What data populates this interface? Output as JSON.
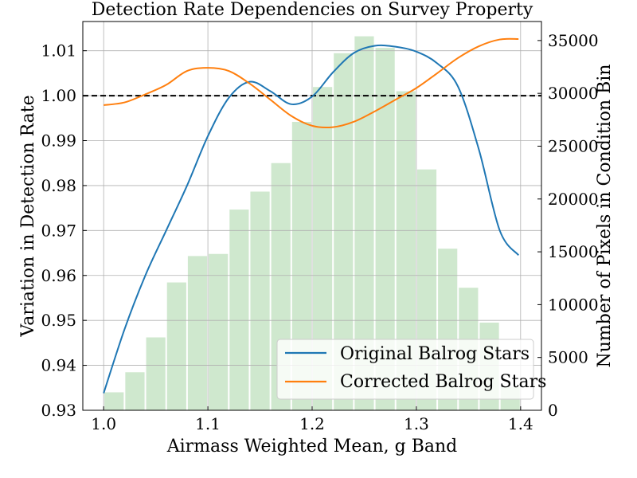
{
  "chart_data": {
    "type": "bar+line",
    "title": "Detection Rate Dependencies on Survey Property",
    "xlabel": "Airmass Weighted Mean, g Band",
    "ylabel": "Variation in Detection Rate",
    "ylabel_right": "Number of Pixels in Condition Bin",
    "xlim": [
      0.98,
      1.42
    ],
    "ylim": [
      0.93,
      1.0165
    ],
    "ylim_right": [
      0,
      36800
    ],
    "x_ticks": [
      "1.0",
      "1.1",
      "1.2",
      "1.3",
      "1.4"
    ],
    "x_tick_values": [
      1.0,
      1.1,
      1.2,
      1.3,
      1.4
    ],
    "y_ticks": [
      "0.93",
      "0.94",
      "0.95",
      "0.96",
      "0.97",
      "0.98",
      "0.99",
      "1.00",
      "1.01"
    ],
    "y_tick_values": [
      0.93,
      0.94,
      0.95,
      0.96,
      0.97,
      0.98,
      0.99,
      1.0,
      1.01
    ],
    "y_right_ticks": [
      "0",
      "5000",
      "10000",
      "15000",
      "20000",
      "25000",
      "30000",
      "35000"
    ],
    "y_right_tick_values": [
      0,
      5000,
      10000,
      15000,
      20000,
      25000,
      30000,
      35000
    ],
    "reference_line": {
      "y": 1.0,
      "style": "dashed",
      "color": "#000000"
    },
    "histogram": {
      "color": "#a8d5a6",
      "bin_edges": [
        1.0,
        1.02,
        1.04,
        1.06,
        1.08,
        1.1,
        1.12,
        1.14,
        1.16,
        1.18,
        1.2,
        1.22,
        1.24,
        1.26,
        1.28,
        1.3,
        1.32,
        1.34,
        1.36,
        1.38,
        1.4
      ],
      "counts": [
        1700,
        3600,
        6900,
        12100,
        14600,
        14800,
        19000,
        20700,
        23400,
        27300,
        30600,
        33800,
        35400,
        34300,
        30200,
        22800,
        15300,
        11600,
        8300,
        2200
      ]
    },
    "series": [
      {
        "name": "Original Balrog Stars",
        "color": "#1f77b4",
        "x": [
          1.0,
          1.02,
          1.04,
          1.06,
          1.08,
          1.1,
          1.12,
          1.14,
          1.16,
          1.18,
          1.2,
          1.22,
          1.24,
          1.26,
          1.28,
          1.3,
          1.32,
          1.34,
          1.36,
          1.38,
          1.398
        ],
        "values": [
          0.9338,
          0.948,
          0.96,
          0.97,
          0.98,
          0.991,
          0.9995,
          1.0031,
          1.001,
          0.9981,
          0.9998,
          1.0052,
          1.0095,
          1.0111,
          1.0109,
          1.0098,
          1.0072,
          1.002,
          0.988,
          0.97,
          0.9645
        ]
      },
      {
        "name": "Corrected Balrog Stars",
        "color": "#ff7f0e",
        "x": [
          1.0,
          1.02,
          1.04,
          1.06,
          1.08,
          1.1,
          1.12,
          1.14,
          1.16,
          1.18,
          1.2,
          1.22,
          1.24,
          1.26,
          1.28,
          1.3,
          1.32,
          1.34,
          1.36,
          1.38,
          1.398
        ],
        "values": [
          0.9979,
          0.9985,
          1.0003,
          1.0024,
          1.0055,
          1.0062,
          1.0055,
          1.0027,
          0.9991,
          0.9955,
          0.9933,
          0.993,
          0.9942,
          0.9965,
          0.9991,
          1.0017,
          1.005,
          1.0084,
          1.011,
          1.0125,
          1.0126
        ]
      }
    ],
    "legend": {
      "placement": "lower-right",
      "entries": [
        "Original Balrog Stars",
        "Corrected Balrog Stars"
      ]
    },
    "grid": true
  }
}
